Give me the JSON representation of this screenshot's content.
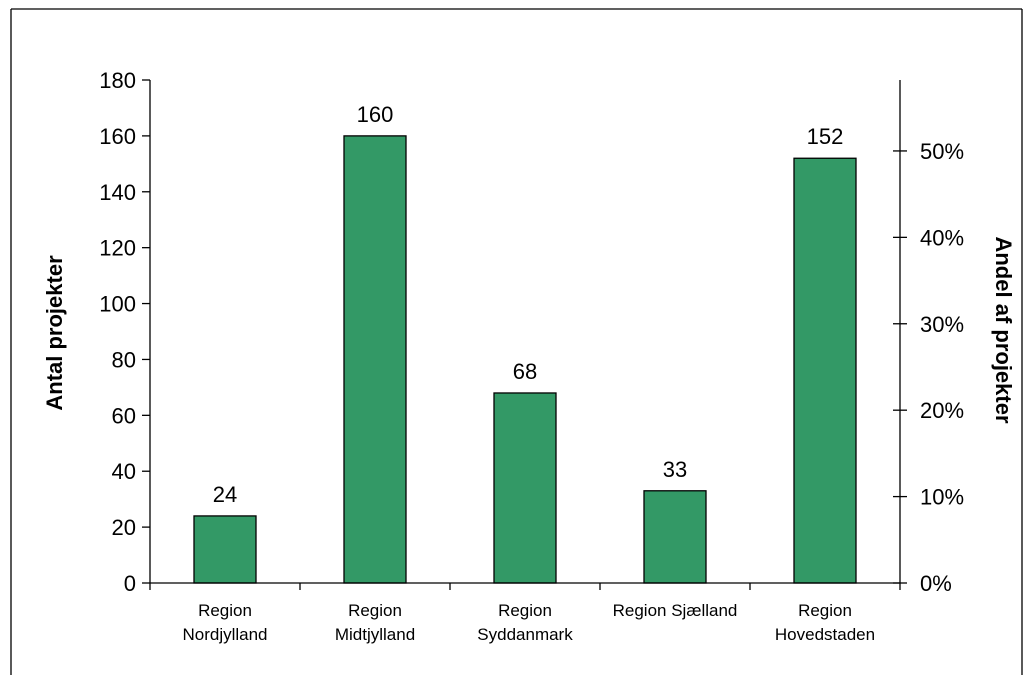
{
  "colors": {
    "bar_fill": "#339966",
    "bar_stroke": "#000000",
    "axis": "#000000",
    "background": "#ffffff"
  },
  "chart_data": {
    "type": "bar",
    "categories": [
      [
        "Region",
        "Nordjylland"
      ],
      [
        "Region",
        "Midtjylland"
      ],
      [
        "Region",
        "Syddanmark"
      ],
      [
        "Region Sjælland"
      ],
      [
        "Region",
        "Hovedstaden"
      ]
    ],
    "values": [
      24,
      160,
      68,
      33,
      152
    ],
    "data_labels": [
      "24",
      "160",
      "68",
      "33",
      "152"
    ],
    "ylabel": "Antal projekter",
    "ylim": [
      0,
      180
    ],
    "yticks": [
      0,
      20,
      40,
      60,
      80,
      100,
      120,
      140,
      160,
      180
    ],
    "ytick_labels": [
      "0",
      "20",
      "40",
      "60",
      "80",
      "100",
      "120",
      "140",
      "160",
      "180"
    ],
    "y2label": "Andel af projekter",
    "y2lim": [
      0,
      0.5821
    ],
    "y2ticks": [
      0,
      0.1,
      0.2,
      0.3,
      0.4,
      0.5
    ],
    "y2tick_labels": [
      "0%",
      "10%",
      "20%",
      "30%",
      "40%",
      "50%"
    ],
    "grid": false,
    "legend": "none"
  }
}
